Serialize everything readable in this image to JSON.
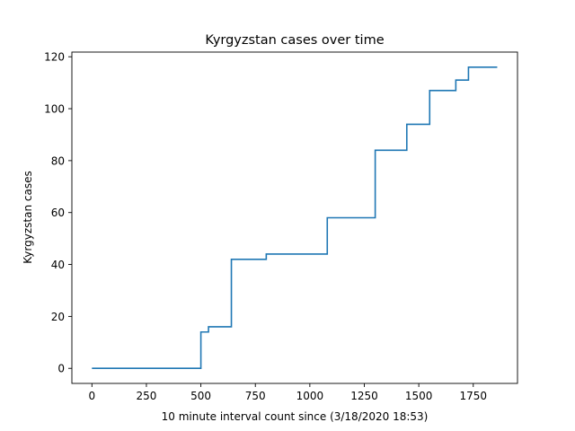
{
  "chart_data": {
    "type": "line",
    "title": "Kyrgyzstan cases over time",
    "xlabel": "10 minute interval count since (3/18/2020 18:53)",
    "ylabel": "Kyrgyzstan cases",
    "xlim": [
      -92,
      1953
    ],
    "ylim": [
      -5.8,
      121.8
    ],
    "xticks": [
      0,
      250,
      500,
      750,
      1000,
      1250,
      1500,
      1750
    ],
    "yticks": [
      0,
      20,
      40,
      60,
      80,
      100,
      120
    ],
    "grid": false,
    "step": "post",
    "series": [
      {
        "color": "#1f77b4",
        "x": [
          0,
          500,
          535,
          640,
          800,
          1080,
          1300,
          1445,
          1550,
          1670,
          1728,
          1860
        ],
        "y": [
          0,
          14,
          16,
          42,
          44,
          58,
          84,
          94,
          107,
          111,
          116,
          116
        ]
      }
    ]
  }
}
